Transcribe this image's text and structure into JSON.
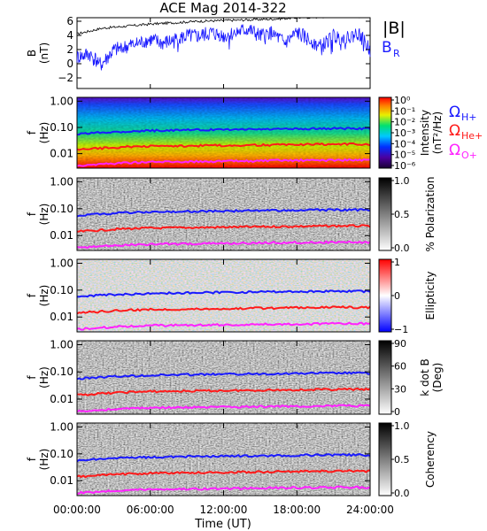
{
  "title": "ACE Mag 2014-322",
  "chart_data": [
    {
      "type": "line",
      "ylabel_line1": "B",
      "ylabel_line2": "(nT)",
      "ylim": [
        -3.5,
        6.5
      ],
      "yticks": [
        "6",
        "4",
        "2",
        "0",
        "−2"
      ],
      "ytick_values": [
        6,
        4,
        2,
        0,
        -2
      ],
      "series": [
        {
          "name": "|B|",
          "color": "#000000",
          "x_hours": [
            0,
            2,
            4,
            6,
            8,
            10,
            12,
            14,
            16,
            18,
            20,
            22,
            24
          ],
          "values": [
            4.2,
            5.0,
            5.3,
            5.6,
            5.8,
            6.0,
            6.1,
            6.2,
            6.3,
            6.5,
            6.6,
            6.7,
            6.6
          ]
        },
        {
          "name": "B",
          "subscript": "R",
          "color": "#1a1aff",
          "x_hours": [
            0,
            1,
            2,
            3,
            4,
            5,
            6,
            7,
            8,
            9,
            10,
            11,
            12,
            13,
            14,
            15,
            16,
            17,
            18,
            19,
            20,
            21,
            22,
            23,
            24
          ],
          "values": [
            1.0,
            1.5,
            0.0,
            2.0,
            2.5,
            3.0,
            3.5,
            3.0,
            3.5,
            4.0,
            4.0,
            4.5,
            4.0,
            4.5,
            5.0,
            4.0,
            4.5,
            3.0,
            4.5,
            3.5,
            2.5,
            4.0,
            3.5,
            4.5,
            2.0
          ]
        }
      ]
    },
    {
      "type": "heatmap",
      "ylabel_line1": "f",
      "ylabel_line2": "(Hz)",
      "yscale": "log",
      "yticks": [
        "1.00",
        "0.10",
        "0.01"
      ],
      "colorbar_title_line1": "Intensity",
      "colorbar_title_line2": "(nT²/Hz)",
      "colorbar_ticks": [
        "10⁰",
        "10⁻¹",
        "10⁻²",
        "10⁻³",
        "10⁻⁴",
        "10⁻⁵",
        "10⁻⁶"
      ],
      "colorscale": "rainbow"
    },
    {
      "type": "heatmap",
      "ylabel_line1": "f",
      "ylabel_line2": "(Hz)",
      "yscale": "log",
      "yticks": [
        "1.00",
        "0.10",
        "0.01"
      ],
      "colorbar_title": "% Polarization",
      "colorbar_ticks": [
        "1.0",
        "0.5",
        "0.0"
      ],
      "colorscale": "grayscale"
    },
    {
      "type": "heatmap",
      "ylabel_line1": "f",
      "ylabel_line2": "(Hz)",
      "yscale": "log",
      "yticks": [
        "1.00",
        "0.10",
        "0.01"
      ],
      "colorbar_title": "Ellipticity",
      "colorbar_ticks": [
        "1",
        "0",
        "−1"
      ],
      "colorscale": "blue-white-red"
    },
    {
      "type": "heatmap",
      "ylabel_line1": "f",
      "ylabel_line2": "(Hz)",
      "yscale": "log",
      "yticks": [
        "1.00",
        "0.10",
        "0.01"
      ],
      "colorbar_title_line1": "k dot B",
      "colorbar_title_line2": "(Deg)",
      "colorbar_ticks": [
        "90",
        "60",
        "30",
        "0"
      ],
      "colorscale": "grayscale"
    },
    {
      "type": "heatmap",
      "ylabel_line1": "f",
      "ylabel_line2": "(Hz)",
      "yscale": "log",
      "yticks": [
        "1.00",
        "0.10",
        "0.01"
      ],
      "colorbar_title": "Coherency",
      "colorbar_ticks": [
        "1.0",
        "0.5",
        "0.0"
      ],
      "colorscale": "grayscale"
    }
  ],
  "gyrofrequency_lines": [
    {
      "name": "Ω",
      "subscript": "H+",
      "color": "#1a1aff",
      "freq_hz": [
        0.055,
        0.065,
        0.07,
        0.075,
        0.078,
        0.08,
        0.082,
        0.084,
        0.086,
        0.088,
        0.09,
        0.091,
        0.09
      ]
    },
    {
      "name": "Ω",
      "subscript": "He+",
      "color": "#ff1a1a",
      "freq_hz": [
        0.014,
        0.016,
        0.018,
        0.019,
        0.0195,
        0.02,
        0.0205,
        0.021,
        0.0215,
        0.022,
        0.0225,
        0.023,
        0.0225
      ]
    },
    {
      "name": "Ω",
      "subscript": "O+",
      "color": "#ff22ff",
      "freq_hz": [
        0.0035,
        0.004,
        0.0045,
        0.0048,
        0.0049,
        0.005,
        0.0051,
        0.0052,
        0.0054,
        0.0055,
        0.0056,
        0.0057,
        0.0056
      ]
    }
  ],
  "xaxis": {
    "label": "Time (UT)",
    "ticks": [
      "00:00:00",
      "06:00:00",
      "12:00:00",
      "18:00:00",
      "24:00:00"
    ],
    "tick_hours": [
      0,
      6,
      12,
      18,
      24
    ]
  }
}
